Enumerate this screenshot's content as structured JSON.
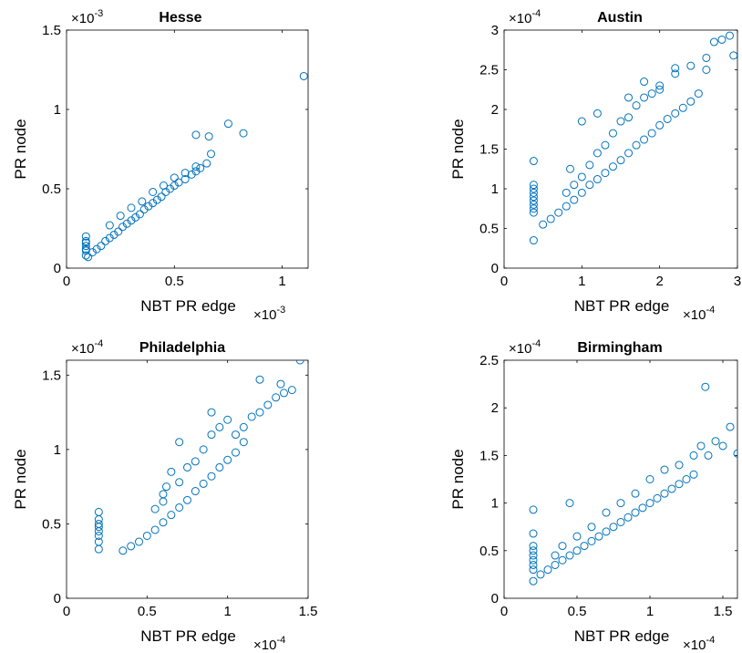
{
  "chart_data": [
    {
      "type": "scatter",
      "title": "Hesse",
      "xlabel": "NBT PR edge",
      "ylabel": "PR node",
      "x_multiplier": "-3",
      "y_multiplier": "-3",
      "xlim": [
        0,
        1.12
      ],
      "ylim": [
        0,
        1.5
      ],
      "xticks": [
        0,
        0.5,
        1
      ],
      "xtick_labels": [
        "0",
        "0.5",
        "1"
      ],
      "yticks": [
        0,
        0.5,
        1,
        1.5
      ],
      "ytick_labels": [
        "0",
        "0.5",
        "1",
        "1.5"
      ],
      "marker": "circle",
      "color": "#0072BD",
      "grid": false,
      "series": [
        {
          "x": [
            0.09,
            0.09,
            0.09,
            0.09,
            0.09,
            0.09,
            0.09,
            0.1,
            0.12,
            0.14,
            0.16,
            0.18,
            0.2,
            0.22,
            0.24,
            0.26,
            0.28,
            0.3,
            0.32,
            0.34,
            0.36,
            0.38,
            0.4,
            0.42,
            0.44,
            0.46,
            0.48,
            0.5,
            0.52,
            0.55,
            0.58,
            0.6,
            0.62,
            0.65,
            0.2,
            0.25,
            0.3,
            0.35,
            0.4,
            0.45,
            0.5,
            0.55,
            0.6,
            0.66,
            0.67,
            0.6,
            0.75,
            0.82,
            1.1
          ],
          "y": [
            0.08,
            0.11,
            0.14,
            0.17,
            0.2,
            0.12,
            0.16,
            0.07,
            0.1,
            0.12,
            0.14,
            0.17,
            0.19,
            0.21,
            0.23,
            0.26,
            0.28,
            0.3,
            0.32,
            0.34,
            0.37,
            0.39,
            0.41,
            0.43,
            0.45,
            0.48,
            0.5,
            0.52,
            0.54,
            0.56,
            0.59,
            0.61,
            0.63,
            0.66,
            0.27,
            0.33,
            0.38,
            0.42,
            0.48,
            0.52,
            0.57,
            0.6,
            0.64,
            0.83,
            0.72,
            0.84,
            0.91,
            0.85,
            1.21
          ]
        }
      ]
    },
    {
      "type": "scatter",
      "title": "Austin",
      "xlabel": "NBT PR edge",
      "ylabel": "PR node",
      "x_multiplier": "-4",
      "y_multiplier": "-4",
      "xlim": [
        0,
        3
      ],
      "ylim": [
        0,
        3
      ],
      "xticks": [
        0,
        1,
        2,
        3
      ],
      "xtick_labels": [
        "0",
        "1",
        "2",
        "3"
      ],
      "yticks": [
        0,
        0.5,
        1,
        1.5,
        2,
        2.5,
        3
      ],
      "ytick_labels": [
        "0",
        "0.5",
        "1",
        "1.5",
        "2",
        "2.5",
        "3"
      ],
      "marker": "circle",
      "color": "#0072BD",
      "grid": false,
      "series": [
        {
          "x": [
            0.38,
            0.38,
            0.38,
            0.38,
            0.38,
            0.38,
            0.38,
            0.38,
            0.38,
            0.38,
            0.5,
            0.6,
            0.7,
            0.8,
            0.9,
            1.0,
            1.1,
            1.2,
            1.3,
            1.4,
            1.5,
            1.6,
            1.7,
            1.8,
            1.9,
            2.0,
            2.1,
            2.2,
            2.3,
            2.4,
            2.5,
            0.8,
            0.9,
            1.0,
            1.1,
            1.2,
            1.3,
            1.4,
            1.5,
            1.6,
            1.7,
            1.8,
            1.9,
            2.0,
            2.2,
            2.4,
            2.6,
            2.7,
            2.8,
            2.9,
            2.95,
            2.6,
            2.2,
            2.0,
            1.8,
            1.6,
            1.2,
            1.0,
            0.85
          ],
          "y": [
            0.35,
            0.7,
            0.75,
            0.8,
            0.85,
            0.9,
            0.95,
            1.0,
            1.05,
            1.35,
            0.55,
            0.62,
            0.7,
            0.78,
            0.86,
            0.95,
            1.05,
            1.12,
            1.2,
            1.28,
            1.36,
            1.45,
            1.55,
            1.62,
            1.7,
            1.8,
            1.88,
            1.95,
            2.02,
            2.1,
            2.2,
            0.95,
            1.05,
            1.15,
            1.3,
            1.45,
            1.55,
            1.7,
            1.85,
            1.9,
            2.05,
            2.15,
            2.2,
            2.3,
            2.45,
            2.55,
            2.65,
            2.85,
            2.88,
            2.93,
            2.68,
            2.5,
            2.52,
            2.25,
            2.35,
            2.15,
            1.95,
            1.85,
            1.25
          ]
        }
      ]
    },
    {
      "type": "scatter",
      "title": "Philadelphia",
      "xlabel": "NBT PR edge",
      "ylabel": "PR node",
      "x_multiplier": "-4",
      "y_multiplier": "-4",
      "xlim": [
        0,
        1.5
      ],
      "ylim": [
        0,
        1.6
      ],
      "xticks": [
        0,
        0.5,
        1,
        1.5
      ],
      "xtick_labels": [
        "0",
        "0.5",
        "1",
        "1.5"
      ],
      "yticks": [
        0,
        0.5,
        1,
        1.5
      ],
      "ytick_labels": [
        "0",
        "0.5",
        "1",
        "1.5"
      ],
      "marker": "circle",
      "color": "#0072BD",
      "grid": false,
      "series": [
        {
          "x": [
            0.2,
            0.2,
            0.2,
            0.2,
            0.2,
            0.2,
            0.2,
            0.2,
            0.35,
            0.4,
            0.45,
            0.5,
            0.55,
            0.6,
            0.65,
            0.7,
            0.75,
            0.8,
            0.85,
            0.9,
            0.95,
            1.0,
            1.05,
            1.1,
            0.55,
            0.6,
            0.62,
            0.65,
            0.7,
            0.75,
            0.8,
            0.85,
            0.9,
            0.95,
            1.0,
            1.05,
            1.1,
            1.15,
            1.2,
            1.25,
            1.3,
            1.35,
            1.4,
            1.45,
            1.33,
            1.2,
            0.9,
            0.7,
            0.6
          ],
          "y": [
            0.33,
            0.38,
            0.42,
            0.45,
            0.48,
            0.5,
            0.53,
            0.58,
            0.32,
            0.35,
            0.38,
            0.42,
            0.46,
            0.51,
            0.56,
            0.61,
            0.66,
            0.72,
            0.77,
            0.82,
            0.88,
            0.93,
            0.98,
            1.05,
            0.6,
            0.65,
            0.75,
            0.85,
            0.78,
            0.88,
            0.92,
            1.0,
            1.1,
            1.15,
            1.2,
            1.1,
            1.15,
            1.22,
            1.25,
            1.3,
            1.35,
            1.38,
            1.4,
            1.6,
            1.44,
            1.47,
            1.25,
            1.05,
            0.7
          ]
        }
      ]
    },
    {
      "type": "scatter",
      "title": "Birmingham",
      "xlabel": "NBT PR edge",
      "ylabel": "PR node",
      "x_multiplier": "-4",
      "y_multiplier": "-4",
      "xlim": [
        0,
        1.6
      ],
      "ylim": [
        0,
        2.5
      ],
      "xticks": [
        0,
        0.5,
        1,
        1.5
      ],
      "xtick_labels": [
        "0",
        "0.5",
        "1",
        "1.5"
      ],
      "yticks": [
        0,
        0.5,
        1,
        1.5,
        2,
        2.5
      ],
      "ytick_labels": [
        "0",
        "0.5",
        "1",
        "1.5",
        "2",
        "2.5"
      ],
      "marker": "circle",
      "color": "#0072BD",
      "grid": false,
      "series": [
        {
          "x": [
            0.2,
            0.2,
            0.2,
            0.2,
            0.2,
            0.2,
            0.2,
            0.2,
            0.2,
            0.25,
            0.3,
            0.35,
            0.4,
            0.45,
            0.5,
            0.55,
            0.6,
            0.65,
            0.7,
            0.75,
            0.8,
            0.85,
            0.9,
            0.95,
            1.0,
            1.05,
            1.1,
            1.15,
            1.2,
            1.25,
            1.3,
            0.5,
            0.6,
            0.7,
            0.8,
            0.9,
            1.0,
            1.1,
            1.2,
            1.3,
            1.35,
            1.4,
            1.45,
            1.5,
            1.55,
            1.6,
            1.38,
            0.4,
            0.45,
            0.35
          ],
          "y": [
            0.18,
            0.3,
            0.35,
            0.4,
            0.45,
            0.5,
            0.55,
            0.68,
            0.93,
            0.25,
            0.3,
            0.35,
            0.4,
            0.45,
            0.5,
            0.55,
            0.6,
            0.65,
            0.7,
            0.75,
            0.8,
            0.85,
            0.9,
            0.95,
            1.0,
            1.05,
            1.1,
            1.15,
            1.2,
            1.25,
            1.3,
            0.65,
            0.75,
            0.9,
            1.0,
            1.1,
            1.25,
            1.35,
            1.4,
            1.5,
            1.6,
            1.5,
            1.65,
            1.6,
            1.8,
            1.52,
            2.22,
            0.55,
            1.0,
            0.45
          ]
        }
      ]
    }
  ]
}
